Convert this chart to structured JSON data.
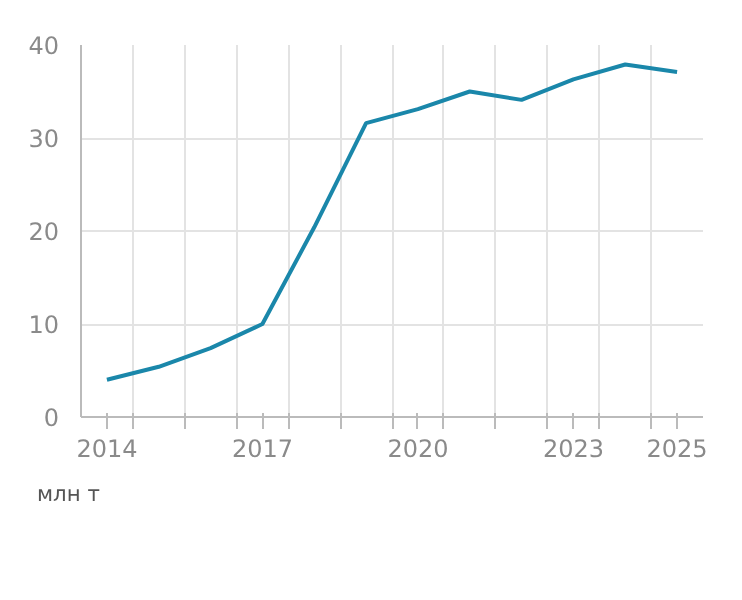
{
  "chart_data": {
    "type": "line",
    "x": [
      2014,
      2015,
      2016,
      2017,
      2018,
      2019,
      2020,
      2021,
      2022,
      2023,
      2024,
      2025
    ],
    "series": [
      {
        "color": "#1a87aa",
        "values": [
          4.0,
          5.4,
          7.4,
          10.0,
          20.4,
          31.6,
          33.1,
          35.0,
          34.1,
          36.3,
          37.9,
          37.1
        ]
      }
    ],
    "xlim": [
      2013.5,
      2025.5
    ],
    "xticks": [
      2014,
      2017,
      2020,
      2023,
      2025,
      {
        "value": 2014.5,
        "label": null
      },
      {
        "value": 2015.5,
        "label": null
      },
      {
        "value": 2016.5,
        "label": null
      },
      {
        "value": 2017.5,
        "label": null
      },
      {
        "value": 2018.5,
        "label": null
      },
      {
        "value": 2019.5,
        "label": null
      },
      {
        "value": 2020.5,
        "label": null
      },
      {
        "value": 2021.5,
        "label": null
      },
      {
        "value": 2022.5,
        "label": null
      },
      {
        "value": 2023.5,
        "label": null
      },
      {
        "value": 2024.5,
        "label": null
      }
    ],
    "ylim": [
      0,
      40
    ],
    "yticks": [
      0,
      10,
      20,
      30,
      40
    ],
    "grid": true,
    "marker": "none",
    "line_style": "solid",
    "annotations": [
      "млн т"
    ]
  }
}
